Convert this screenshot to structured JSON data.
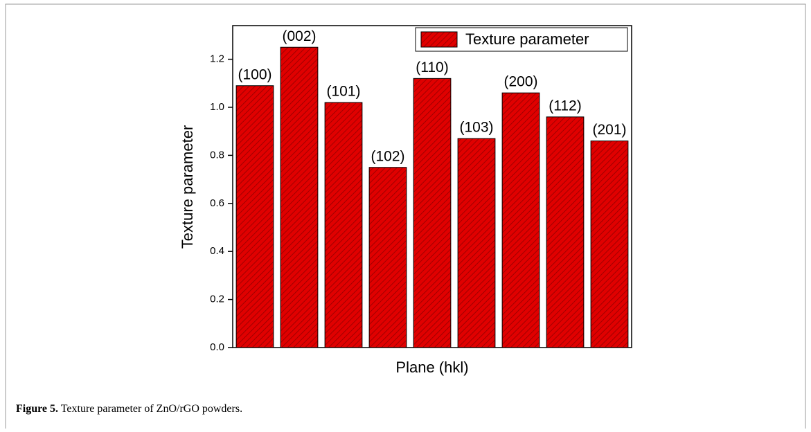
{
  "chart_data": {
    "type": "bar",
    "y_label": "Texture parameter",
    "x_label": "Plane (hkl)",
    "categories": [
      "(100)",
      "(002)",
      "(101)",
      "(102)",
      "(110)",
      "(103)",
      "(200)",
      "(112)",
      "(201)"
    ],
    "series": [
      {
        "name": "Texture parameter",
        "color": "#e00000",
        "values": [
          1.09,
          1.25,
          1.02,
          0.75,
          1.12,
          0.87,
          1.06,
          0.96,
          0.86
        ]
      }
    ],
    "ylim": [
      0,
      1.34
    ],
    "yticks": [
      {
        "value": 0,
        "label": "0.0"
      },
      0.2,
      0.4,
      0.6,
      0.8,
      {
        "value": 1,
        "label": "1.0"
      },
      1.2
    ],
    "legend": "upper right"
  },
  "caption": {
    "label": "Figure 5.",
    "text": "Texture parameter of ZnO/rGO powders."
  }
}
